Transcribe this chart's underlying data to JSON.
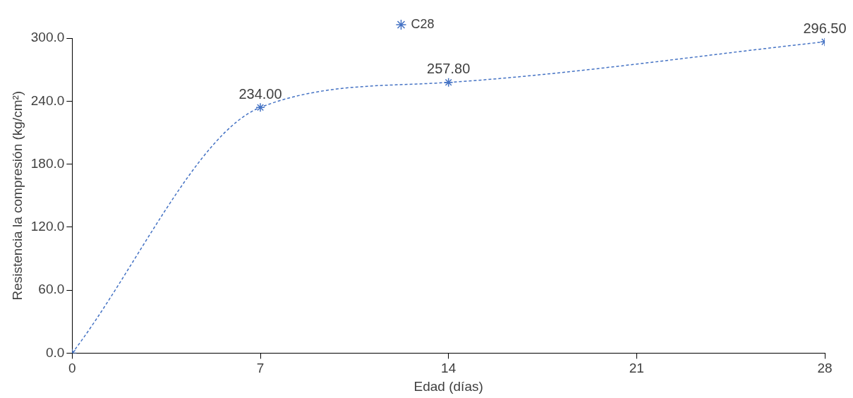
{
  "chart_data": {
    "type": "line",
    "xlabel": "Edad (días)",
    "ylabel": "Resistencia la compresión (kg/cm²)",
    "x": [
      0,
      7,
      14,
      28
    ],
    "series": [
      {
        "name": "C28",
        "color": "#4472c4",
        "values": [
          0,
          234,
          257.8,
          296.5
        ],
        "value_labels": [
          null,
          "234.00",
          "257.80",
          "296.50"
        ]
      }
    ],
    "xlim": [
      0,
      28
    ],
    "xticks": [
      0,
      7,
      14,
      21,
      28
    ],
    "ylim": [
      0,
      300
    ],
    "yticks": [
      {
        "value": 0,
        "label": "0.0"
      },
      {
        "value": 60,
        "label": "60.0"
      },
      {
        "value": 120,
        "label": "120.0"
      },
      {
        "value": 180,
        "label": "180.0"
      },
      {
        "value": 240,
        "label": "240.0"
      },
      {
        "value": 300,
        "label": "300.0"
      }
    ],
    "grid": false,
    "legend": "top",
    "marker": "cross",
    "line_style": "dashed"
  }
}
